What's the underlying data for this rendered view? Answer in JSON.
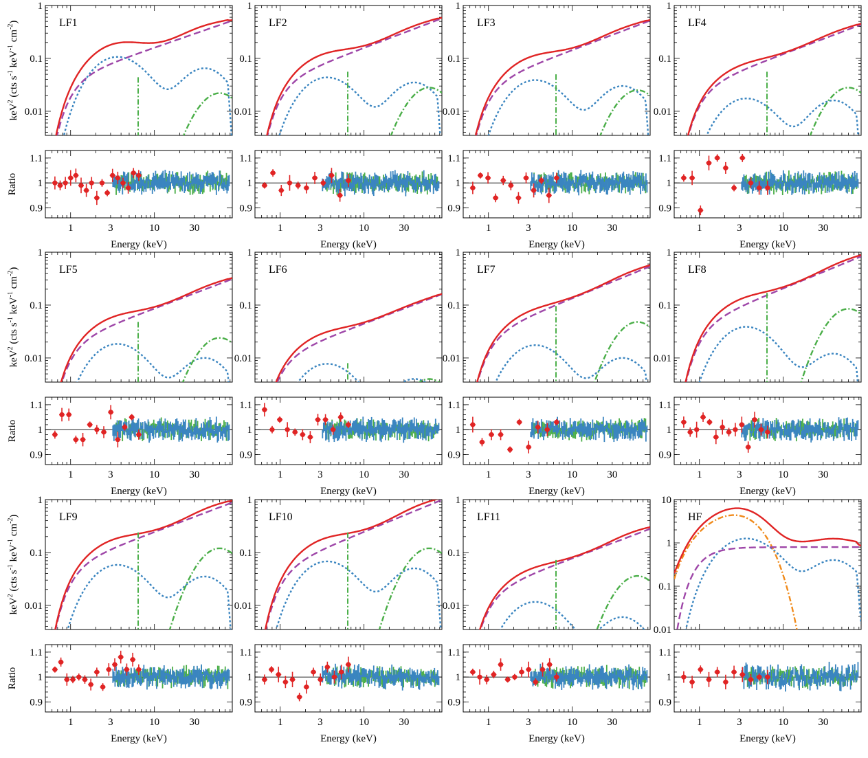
{
  "colors": {
    "total": "#e02424",
    "powerlaw": "#9e46a8",
    "blue": "#3a85c0",
    "green": "#4aae48",
    "orange": "#f08a1a",
    "data_red": "#e02424",
    "data_blue": "#3a85c0",
    "data_green": "#4aae48"
  },
  "axes": {
    "y_label": "keV² (cts s⁻¹ keV⁻¹ cm⁻²)",
    "y_label_main": "keV",
    "y_label_rest": " (cts s",
    "y_label_unit": " keV",
    "y_label_end": " cm",
    "y_label_close": ")",
    "sup2": "2",
    "supm1": "-1",
    "supm2": "-2",
    "x_label": "Energy (keV)",
    "ratio_label": "Ratio",
    "x_ticks": [
      "1",
      "3",
      "10",
      "30"
    ],
    "ratio_ticks": [
      "1.1",
      "1",
      "0.9"
    ]
  },
  "chart_data": [
    {
      "type": "line",
      "panel": "LF1",
      "ylim": [
        0.0035,
        1
      ],
      "yticks": [
        "1",
        "0.1",
        "0.01"
      ],
      "components": {
        "total": {
          "c": 0.7,
          "sl": 0.55
        },
        "powerlaw": {
          "n": 0.5,
          "sl": 0.55
        },
        "blue": {
          "a": 0.11,
          "p": 3.5,
          "h": 0.065,
          "hp": 40
        },
        "green": {
          "n": 0.022,
          "p": 8
        }
      },
      "ratio": {
        "red": [
          1.0,
          0.99,
          1.0,
          1.02,
          1.03,
          0.99,
          0.97,
          1.0,
          0.94,
          1.0,
          0.96,
          1.03,
          1.02,
          1.0,
          0.98,
          1.04,
          1.03
        ],
        "blue": 0.02,
        "green": 0.02
      }
    },
    {
      "type": "line",
      "panel": "LF2",
      "ylim": [
        0.0035,
        1
      ],
      "yticks": [
        "1",
        "0.1",
        "0.01"
      ],
      "components": {
        "total": {
          "c": 0.6,
          "sl": 0.6
        },
        "powerlaw": {
          "n": 0.55,
          "sl": 0.6
        },
        "blue": {
          "a": 0.045,
          "p": 3.5,
          "h": 0.035,
          "hp": 40
        },
        "green": {
          "n": 0.028,
          "p": 8
        }
      },
      "ratio": {
        "red": [
          0.99,
          1.04,
          0.97,
          1.0,
          0.99,
          0.98,
          1.02,
          1.0,
          1.03,
          0.95,
          1.01
        ],
        "blue": 0.02,
        "green": 0.02
      }
    },
    {
      "type": "line",
      "panel": "LF3",
      "ylim": [
        0.0035,
        1
      ],
      "yticks": [
        "1",
        "0.1",
        "0.01"
      ],
      "components": {
        "total": {
          "c": 0.55,
          "sl": 0.6
        },
        "powerlaw": {
          "n": 0.5,
          "sl": 0.6
        },
        "blue": {
          "a": 0.04,
          "p": 3.5,
          "h": 0.03,
          "hp": 40
        },
        "green": {
          "n": 0.025,
          "p": 8
        }
      },
      "ratio": {
        "red": [
          0.98,
          1.03,
          1.02,
          0.94,
          1.01,
          0.99,
          0.94,
          1.02,
          0.97,
          1.01,
          0.95,
          1.02
        ],
        "blue": 0.02,
        "green": 0.02
      }
    },
    {
      "type": "line",
      "panel": "LF4",
      "ylim": [
        0.0035,
        1
      ],
      "yticks": [
        "1",
        "0.1",
        "0.01"
      ],
      "components": {
        "total": {
          "c": 0.45,
          "sl": 0.6
        },
        "powerlaw": {
          "n": 0.42,
          "sl": 0.6
        },
        "blue": {
          "a": 0.018,
          "p": 3.5,
          "h": 0.016,
          "hp": 40
        },
        "green": {
          "n": 0.028,
          "p": 8
        }
      },
      "ratio": {
        "red": [
          1.02,
          1.02,
          0.89,
          1.08,
          1.1,
          1.06,
          0.98,
          1.1,
          1.0,
          0.98,
          0.98
        ],
        "blue": 0.02,
        "green": 0.02
      }
    },
    {
      "type": "line",
      "panel": "LF5",
      "ylim": [
        0.0035,
        1
      ],
      "yticks": [
        "1",
        "0.1",
        "0.01"
      ],
      "components": {
        "total": {
          "c": 0.32,
          "sl": 0.6
        },
        "powerlaw": {
          "n": 0.3,
          "sl": 0.6
        },
        "blue": {
          "a": 0.019,
          "p": 3.5,
          "h": 0.01,
          "hp": 40
        },
        "green": {
          "n": 0.024,
          "p": 8
        }
      },
      "ratio": {
        "red": [
          0.98,
          1.06,
          1.06,
          0.96,
          0.96,
          1.02,
          1.0,
          0.99,
          1.07,
          0.96,
          1.01,
          1.05,
          0.98
        ],
        "blue": 0.02,
        "green": 0.02
      }
    },
    {
      "type": "line",
      "panel": "LF6",
      "ylim": [
        0.0035,
        1
      ],
      "yticks": [
        "1",
        "0.1",
        "0.01"
      ],
      "components": {
        "total": {
          "c": 0.16,
          "sl": 0.6
        },
        "powerlaw": {
          "n": 0.155,
          "sl": 0.6
        },
        "blue": {
          "a": 0.008,
          "p": 3.5,
          "h": 0.004,
          "hp": 40
        },
        "green": {
          "n": 0.004,
          "p": 8
        }
      },
      "ratio": {
        "red": [
          1.08,
          1.0,
          1.04,
          1.0,
          0.99,
          0.98,
          0.97,
          1.04,
          1.04,
          1.0,
          1.05,
          1.02
        ],
        "blue": 0.02,
        "green": 0.02
      }
    },
    {
      "type": "line",
      "panel": "LF7",
      "ylim": [
        0.0035,
        1
      ],
      "yticks": [
        "1",
        "0.1",
        "0.01"
      ],
      "components": {
        "total": {
          "c": 0.55,
          "sl": 0.65
        },
        "powerlaw": {
          "n": 0.52,
          "sl": 0.65
        },
        "blue": {
          "a": 0.018,
          "p": 3.5,
          "h": 0.01,
          "hp": 40
        },
        "green": {
          "n": 0.048,
          "p": 8
        }
      },
      "ratio": {
        "red": [
          1.02,
          0.95,
          0.98,
          0.98,
          0.92,
          1.03,
          0.93,
          1.01,
          1.0,
          1.03
        ],
        "blue": 0.02,
        "green": 0.02
      }
    },
    {
      "type": "line",
      "panel": "LF8",
      "ylim": [
        0.0035,
        1
      ],
      "yticks": [
        "1",
        "0.1",
        "0.01"
      ],
      "components": {
        "total": {
          "c": 0.85,
          "sl": 0.65
        },
        "powerlaw": {
          "n": 0.8,
          "sl": 0.65
        },
        "blue": {
          "a": 0.04,
          "p": 3.5,
          "h": 0.012,
          "hp": 40
        },
        "green": {
          "n": 0.085,
          "p": 8
        }
      },
      "ratio": {
        "red": [
          1.03,
          0.99,
          1.0,
          1.05,
          1.03,
          0.97,
          1.01,
          0.99,
          1.0,
          1.02,
          0.93,
          1.04,
          1.0,
          0.99
        ],
        "blue": 0.02,
        "green": 0.02
      }
    },
    {
      "type": "line",
      "panel": "LF9",
      "ylim": [
        0.0035,
        1
      ],
      "yticks": [
        "1",
        "0.1",
        "0.01"
      ],
      "components": {
        "total": {
          "c": 0.9,
          "sl": 0.6
        },
        "powerlaw": {
          "n": 0.85,
          "sl": 0.6
        },
        "blue": {
          "a": 0.06,
          "p": 3.5,
          "h": 0.035,
          "hp": 40
        },
        "green": {
          "n": 0.12,
          "p": 8
        }
      },
      "ratio": {
        "red": [
          1.03,
          1.06,
          0.99,
          0.99,
          1.0,
          0.99,
          0.97,
          1.02,
          0.96,
          1.03,
          1.05,
          1.08,
          1.03,
          1.07,
          1.03
        ],
        "blue": 0.02,
        "green": 0.02
      }
    },
    {
      "type": "line",
      "panel": "LF10",
      "ylim": [
        0.0035,
        1
      ],
      "yticks": [
        "1",
        "0.1",
        "0.01"
      ],
      "components": {
        "total": {
          "c": 1.0,
          "sl": 0.65
        },
        "powerlaw": {
          "n": 0.95,
          "sl": 0.65
        },
        "blue": {
          "a": 0.07,
          "p": 3.5,
          "h": 0.05,
          "hp": 40
        },
        "green": {
          "n": 0.12,
          "p": 8
        }
      },
      "ratio": {
        "red": [
          0.99,
          1.03,
          1.01,
          0.98,
          0.99,
          0.92,
          0.96,
          1.02,
          0.99,
          1.04,
          1.0,
          1.02,
          1.05
        ],
        "blue": 0.02,
        "green": 0.02
      }
    },
    {
      "type": "line",
      "panel": "LF11",
      "ylim": [
        0.0035,
        1
      ],
      "yticks": [
        "1",
        "0.1",
        "0.01"
      ],
      "components": {
        "total": {
          "c": 0.28,
          "sl": 0.6
        },
        "powerlaw": {
          "n": 0.27,
          "sl": 0.6
        },
        "blue": {
          "a": 0.012,
          "p": 3.5,
          "h": 0.006,
          "hp": 40
        },
        "green": {
          "n": 0.036,
          "p": 8
        }
      },
      "ratio": {
        "red": [
          1.02,
          1.0,
          0.99,
          1.01,
          1.05,
          0.99,
          1.0,
          1.02,
          1.03,
          0.98,
          1.03,
          1.05,
          1.0
        ],
        "blue": 0.02,
        "green": 0.02
      }
    },
    {
      "type": "line",
      "panel": "HF",
      "ylim": [
        0.01,
        10
      ],
      "yticks": [
        "10",
        "1",
        "0.1",
        "0.01"
      ],
      "components": {
        "total": {
          "c": 1.0,
          "sl": 0.0
        },
        "powerlaw": {
          "n": 0.8,
          "sl": 0.0
        },
        "blue": {
          "a": 1.3,
          "p": 3.5,
          "h": 0.4,
          "hp": 40
        },
        "orange": {
          "n": 4.5,
          "p": 2.5
        }
      },
      "ratio": {
        "red": [
          1.0,
          0.98,
          1.03,
          0.99,
          1.02,
          0.98,
          1.02,
          1.01,
          0.99,
          1.0,
          1.0
        ],
        "blue": 0.03,
        "green": 0.02
      }
    }
  ]
}
